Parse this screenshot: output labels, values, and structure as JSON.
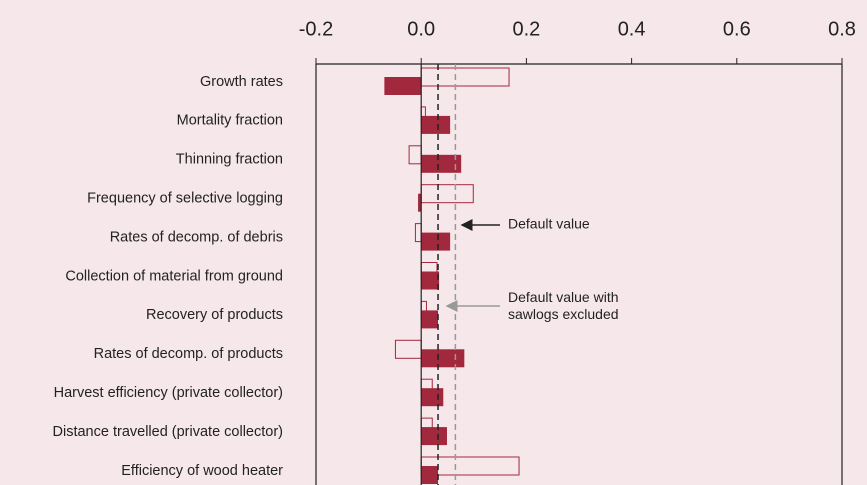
{
  "chart_data": {
    "type": "bar",
    "categories": [
      "Growth rates",
      "Mortality fraction",
      "Thinning fraction",
      "Frequency of selective logging",
      "Rates of decomp. of debris",
      "Collection of material from ground",
      "Recovery of products",
      "Rates of decomp. of products",
      "Harvest efficiency (private collector)",
      "Distance travelled (private collector)",
      "Efficiency of wood heater"
    ],
    "series": [
      {
        "color": "#a2283d",
        "style": "outline",
        "values": [
          0.167,
          0.008,
          -0.023,
          0.099,
          -0.011,
          0.03,
          0.01,
          -0.049,
          0.021,
          0.021,
          0.186
        ]
      },
      {
        "color": "#a2283d",
        "style": "filled",
        "values": [
          -0.07,
          0.055,
          0.076,
          -0.006,
          0.055,
          0.034,
          0.032,
          0.082,
          0.042,
          0.049,
          0.032
        ]
      }
    ],
    "xlim": [
      -0.2,
      0.8
    ],
    "xticks": [
      -0.2,
      {
        "value": 0,
        "label": "0.0"
      },
      0.2,
      0.4,
      0.6,
      0.8
    ],
    "reference_lines": [
      {
        "value": 0.032,
        "color": "#222222",
        "label_lines": [
          "Default value"
        ]
      },
      {
        "value": 0.065,
        "color": "#999999",
        "label_lines": [
          "Default value with",
          "sawlogs excluded"
        ]
      }
    ]
  }
}
